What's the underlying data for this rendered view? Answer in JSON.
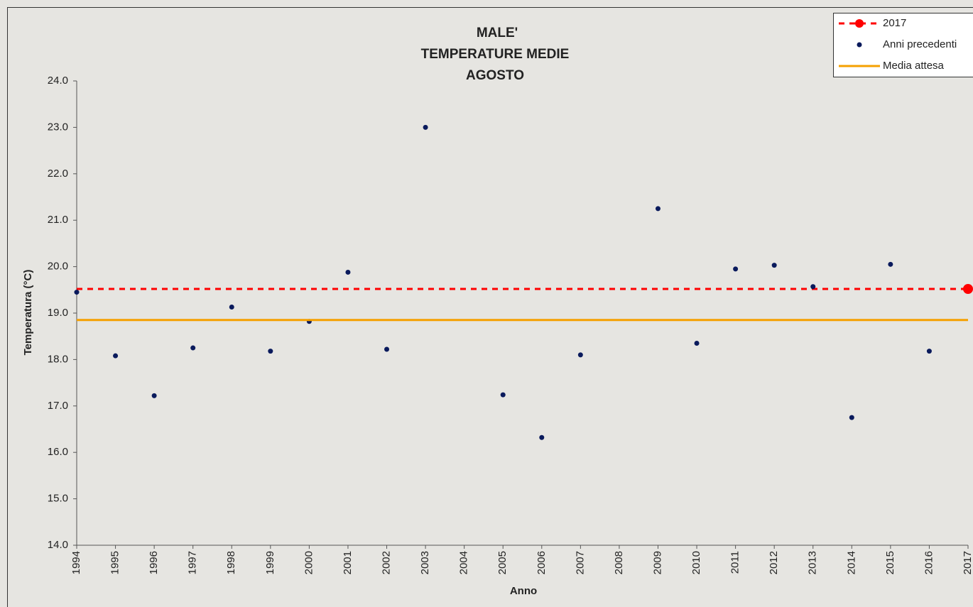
{
  "chart_data": {
    "type": "scatter",
    "title": [
      "MALE'",
      "TEMPERATURE MEDIE",
      "AGOSTO"
    ],
    "x_label": "Anno",
    "y_label": "Temperatura (°C)",
    "xlim": [
      1994,
      2017
    ],
    "xticks": [
      1994,
      1995,
      1996,
      1997,
      1998,
      1999,
      2000,
      2001,
      2002,
      2003,
      2004,
      2005,
      2006,
      2007,
      2008,
      2009,
      2010,
      2011,
      2012,
      2013,
      2014,
      2015,
      2016,
      2017
    ],
    "ylim": [
      14,
      24
    ],
    "yticks": [
      {
        "value": 14,
        "label": "14.0"
      },
      {
        "value": 15,
        "label": "15.0"
      },
      {
        "value": 16,
        "label": "16.0"
      },
      {
        "value": 17,
        "label": "17.0"
      },
      {
        "value": 18,
        "label": "18.0"
      },
      {
        "value": 19,
        "label": "19.0"
      },
      {
        "value": 20,
        "label": "20.0"
      },
      {
        "value": 21,
        "label": "21.0"
      },
      {
        "value": 22,
        "label": "22.0"
      },
      {
        "value": 23,
        "label": "23.0"
      },
      {
        "value": 24,
        "label": "24.0"
      }
    ],
    "legend": "top-right",
    "series": [
      {
        "name": "2017",
        "color": "#ff0000",
        "kind": "point-with-dashed-line",
        "x": [
          2017
        ],
        "values": [
          19.52
        ]
      },
      {
        "name": "Anni precedenti",
        "color": "#0a1a5c",
        "kind": "points",
        "x": [
          1994,
          1995,
          1996,
          1997,
          1998,
          1999,
          2000,
          2001,
          2002,
          2003,
          2005,
          2006,
          2007,
          2009,
          2010,
          2011,
          2012,
          2013,
          2014,
          2015,
          2016
        ],
        "values": [
          19.45,
          18.08,
          17.22,
          18.25,
          19.13,
          18.18,
          18.82,
          19.88,
          18.22,
          23.0,
          17.24,
          16.32,
          18.1,
          21.25,
          18.35,
          19.95,
          20.03,
          19.57,
          16.75,
          20.05,
          18.18
        ]
      },
      {
        "name": "Media attesa",
        "color": "#f5a000",
        "kind": "solid-line",
        "values": [
          18.85
        ]
      }
    ]
  }
}
